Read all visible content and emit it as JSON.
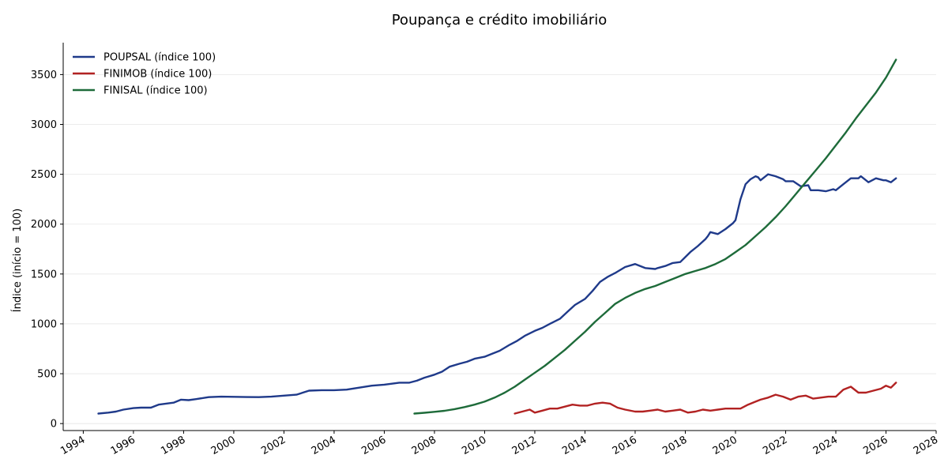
{
  "chart_data": {
    "type": "line",
    "title": "Poupança e crédito imobiliário",
    "xlabel": "",
    "ylabel": "Índice (início = 100)",
    "xlim": [
      1993.2,
      2028.0
    ],
    "ylim": [
      -70,
      3820
    ],
    "x_ticks": [
      1994,
      1996,
      1998,
      2000,
      2002,
      2004,
      2006,
      2008,
      2010,
      2012,
      2014,
      2016,
      2018,
      2020,
      2022,
      2024,
      2026,
      2028
    ],
    "x_tick_labels": [
      "1994",
      "1996",
      "1998",
      "2000",
      "2002",
      "2004",
      "2006",
      "2008",
      "2010",
      "2012",
      "2014",
      "2016",
      "2018",
      "2020",
      "2022",
      "2024",
      "2026",
      "2028"
    ],
    "y_ticks": [
      0,
      500,
      1000,
      1500,
      2000,
      2500,
      3000,
      3500
    ],
    "y_tick_labels": [
      "0",
      "500",
      "1000",
      "1500",
      "2000",
      "2500",
      "3000",
      "3500"
    ],
    "grid": "horizontal",
    "legend_position": "top-left",
    "series": [
      {
        "name": "POUPSAL (índice 100)",
        "color": "#1f3a8a",
        "x": [
          1994.6,
          1995.0,
          1995.3,
          1995.6,
          1996.0,
          1996.3,
          1996.7,
          1997.0,
          1997.3,
          1997.6,
          1997.9,
          1998.2,
          1998.5,
          1999.0,
          1999.5,
          2000.0,
          2000.5,
          2001.0,
          2001.5,
          2002.0,
          2002.5,
          2003.0,
          2003.5,
          2004.0,
          2004.5,
          2005.0,
          2005.5,
          2006.0,
          2006.3,
          2006.6,
          2007.0,
          2007.3,
          2007.6,
          2008.0,
          2008.3,
          2008.6,
          2009.0,
          2009.3,
          2009.6,
          2010.0,
          2010.3,
          2010.6,
          2011.0,
          2011.3,
          2011.6,
          2012.0,
          2012.3,
          2012.6,
          2013.0,
          2013.3,
          2013.6,
          2014.0,
          2014.3,
          2014.6,
          2014.9,
          2015.2,
          2015.6,
          2016.0,
          2016.4,
          2016.8,
          2016.9,
          2017.2,
          2017.5,
          2017.8,
          2018.0,
          2018.2,
          2018.5,
          2018.8,
          2018.9,
          2019.0,
          2019.3,
          2019.6,
          2019.9,
          2020.0,
          2020.2,
          2020.4,
          2020.6,
          2020.8,
          2020.9,
          2021.0,
          2021.3,
          2021.6,
          2021.9,
          2022.0,
          2022.3,
          2022.6,
          2022.9,
          2023.0,
          2023.3,
          2023.6,
          2023.9,
          2024.0,
          2024.3,
          2024.6,
          2024.9,
          2025.0,
          2025.3,
          2025.6,
          2025.9,
          2026.0,
          2026.2,
          2026.4
        ],
        "y": [
          100,
          110,
          120,
          140,
          155,
          160,
          160,
          190,
          200,
          210,
          240,
          235,
          245,
          265,
          270,
          268,
          266,
          265,
          270,
          280,
          290,
          330,
          335,
          335,
          340,
          360,
          380,
          390,
          400,
          410,
          410,
          430,
          460,
          490,
          520,
          570,
          600,
          620,
          650,
          670,
          700,
          730,
          790,
          830,
          880,
          930,
          960,
          1000,
          1050,
          1120,
          1190,
          1250,
          1330,
          1420,
          1470,
          1510,
          1570,
          1600,
          1560,
          1550,
          1560,
          1580,
          1610,
          1620,
          1670,
          1720,
          1780,
          1850,
          1880,
          1920,
          1900,
          1950,
          2010,
          2040,
          2250,
          2400,
          2450,
          2480,
          2470,
          2440,
          2500,
          2480,
          2450,
          2430,
          2430,
          2380,
          2390,
          2340,
          2340,
          2330,
          2350,
          2340,
          2400,
          2460,
          2460,
          2480,
          2420,
          2460,
          2440,
          2440,
          2420,
          2460
        ],
        "values": [
          100,
          110,
          120,
          140,
          155,
          160,
          160,
          190,
          200,
          210,
          240,
          235,
          245,
          265,
          270,
          268,
          266,
          265,
          270,
          280,
          290,
          330,
          335,
          335,
          340,
          360,
          380,
          390,
          400,
          410,
          410,
          430,
          460,
          490,
          520,
          570,
          600,
          620,
          650,
          670,
          700,
          730,
          790,
          830,
          880,
          930,
          960,
          1000,
          1050,
          1120,
          1190,
          1250,
          1330,
          1420,
          1470,
          1510,
          1570,
          1600,
          1560,
          1550,
          1560,
          1580,
          1610,
          1620,
          1670,
          1720,
          1780,
          1850,
          1880,
          1920,
          1900,
          1950,
          2010,
          2040,
          2250,
          2400,
          2450,
          2480,
          2470,
          2440,
          2500,
          2480,
          2450,
          2430,
          2430,
          2380,
          2390,
          2340,
          2340,
          2330,
          2350,
          2340,
          2400,
          2460,
          2460,
          2480,
          2420,
          2460,
          2440,
          2440,
          2420,
          2460
        ]
      },
      {
        "name": "FINIMOB (índice 100)",
        "color": "#b22222",
        "x": [
          2011.2,
          2011.5,
          2011.8,
          2012.0,
          2012.3,
          2012.6,
          2012.9,
          2013.2,
          2013.5,
          2013.8,
          2014.1,
          2014.4,
          2014.7,
          2015.0,
          2015.3,
          2015.6,
          2016.0,
          2016.3,
          2016.6,
          2016.9,
          2017.2,
          2017.5,
          2017.8,
          2018.1,
          2018.4,
          2018.7,
          2019.0,
          2019.3,
          2019.6,
          2019.9,
          2020.2,
          2020.5,
          2020.8,
          2021.0,
          2021.3,
          2021.6,
          2021.9,
          2022.2,
          2022.5,
          2022.8,
          2023.1,
          2023.4,
          2023.7,
          2024.0,
          2024.3,
          2024.6,
          2024.9,
          2025.2,
          2025.5,
          2025.8,
          2026.0,
          2026.2,
          2026.4
        ],
        "y": [
          100,
          120,
          140,
          110,
          130,
          150,
          150,
          170,
          190,
          180,
          180,
          200,
          210,
          200,
          160,
          140,
          120,
          120,
          130,
          140,
          120,
          130,
          140,
          110,
          120,
          140,
          130,
          140,
          150,
          150,
          150,
          190,
          220,
          240,
          260,
          290,
          270,
          240,
          270,
          280,
          250,
          260,
          270,
          270,
          340,
          370,
          310,
          310,
          330,
          350,
          380,
          360,
          410
        ],
        "values": [
          100,
          120,
          140,
          110,
          130,
          150,
          150,
          170,
          190,
          180,
          180,
          200,
          210,
          200,
          160,
          140,
          120,
          120,
          130,
          140,
          120,
          130,
          140,
          110,
          120,
          140,
          130,
          140,
          150,
          150,
          150,
          190,
          220,
          240,
          260,
          290,
          270,
          240,
          270,
          280,
          250,
          260,
          270,
          270,
          340,
          370,
          310,
          310,
          330,
          350,
          380,
          360,
          410
        ]
      },
      {
        "name": "FINISAL (índice 100)",
        "color": "#1e6b3a",
        "x": [
          2007.2,
          2007.6,
          2008.0,
          2008.4,
          2008.8,
          2009.2,
          2009.6,
          2010.0,
          2010.4,
          2010.8,
          2011.2,
          2011.6,
          2012.0,
          2012.4,
          2012.8,
          2013.2,
          2013.6,
          2014.0,
          2014.4,
          2014.8,
          2015.2,
          2015.6,
          2016.0,
          2016.4,
          2016.8,
          2017.2,
          2017.6,
          2018.0,
          2018.4,
          2018.8,
          2019.2,
          2019.6,
          2020.0,
          2020.4,
          2020.8,
          2021.2,
          2021.6,
          2022.0,
          2022.4,
          2022.8,
          2023.2,
          2023.6,
          2024.0,
          2024.4,
          2024.8,
          2025.2,
          2025.6,
          2026.0,
          2026.4
        ],
        "y": [
          100,
          108,
          118,
          128,
          145,
          165,
          190,
          220,
          260,
          310,
          370,
          440,
          510,
          580,
          660,
          740,
          830,
          920,
          1020,
          1110,
          1200,
          1260,
          1310,
          1350,
          1380,
          1420,
          1460,
          1500,
          1530,
          1560,
          1600,
          1650,
          1720,
          1790,
          1880,
          1970,
          2070,
          2180,
          2300,
          2420,
          2540,
          2660,
          2790,
          2920,
          3060,
          3190,
          3320,
          3470,
          3650
        ],
        "values": [
          100,
          108,
          118,
          128,
          145,
          165,
          190,
          220,
          260,
          310,
          370,
          440,
          510,
          580,
          660,
          740,
          830,
          920,
          1020,
          1110,
          1200,
          1260,
          1310,
          1350,
          1380,
          1420,
          1460,
          1500,
          1530,
          1560,
          1600,
          1650,
          1720,
          1790,
          1880,
          1970,
          2070,
          2180,
          2300,
          2420,
          2540,
          2660,
          2790,
          2920,
          3060,
          3190,
          3320,
          3470,
          3650
        ]
      }
    ]
  }
}
